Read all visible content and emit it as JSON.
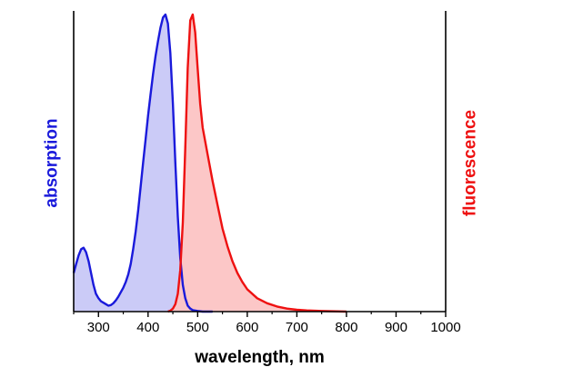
{
  "chart_data": {
    "type": "area",
    "xlabel": "wavelength, nm",
    "ylabel_left": "absorption",
    "ylabel_right": "fluorescence",
    "xlim": [
      250,
      1000
    ],
    "ylim": [
      0,
      1.0
    ],
    "x_ticks": [
      300,
      400,
      500,
      600,
      700,
      800,
      900,
      1000
    ],
    "y_tick_labels_shown": false,
    "grid": false,
    "legend": "none",
    "colors": {
      "absorption_line": "#1a1adb",
      "absorption_fill": "#c8c8f7",
      "fluorescence_line": "#ee1111",
      "fluorescence_fill": "#fcc4c4",
      "axis": "#000000",
      "left_label": "#1a1adb",
      "right_label": "#ee1111"
    },
    "series": [
      {
        "axis": "left",
        "x": [
          250,
          255,
          260,
          265,
          270,
          275,
          280,
          285,
          290,
          295,
          300,
          305,
          310,
          315,
          320,
          325,
          330,
          335,
          340,
          345,
          350,
          355,
          360,
          365,
          370,
          375,
          380,
          385,
          390,
          395,
          400,
          405,
          410,
          415,
          420,
          425,
          430,
          435,
          440,
          445,
          450,
          455,
          460,
          465,
          470,
          475,
          480,
          485,
          490,
          500,
          510,
          520,
          530
        ],
        "y": [
          0.13,
          0.16,
          0.19,
          0.21,
          0.215,
          0.2,
          0.17,
          0.13,
          0.09,
          0.06,
          0.045,
          0.035,
          0.03,
          0.025,
          0.02,
          0.022,
          0.028,
          0.038,
          0.05,
          0.065,
          0.08,
          0.1,
          0.125,
          0.16,
          0.21,
          0.27,
          0.34,
          0.42,
          0.5,
          0.58,
          0.66,
          0.73,
          0.8,
          0.86,
          0.91,
          0.955,
          0.99,
          1.0,
          0.97,
          0.87,
          0.7,
          0.5,
          0.32,
          0.18,
          0.09,
          0.045,
          0.02,
          0.01,
          0.005,
          0.002,
          0.0,
          0.0,
          0.0
        ]
      },
      {
        "axis": "right",
        "x": [
          440,
          445,
          450,
          455,
          460,
          465,
          470,
          475,
          480,
          485,
          490,
          495,
          500,
          505,
          510,
          520,
          530,
          540,
          550,
          560,
          570,
          580,
          590,
          600,
          620,
          640,
          660,
          680,
          700,
          720,
          750,
          800
        ],
        "y": [
          0.0,
          0.003,
          0.01,
          0.025,
          0.06,
          0.14,
          0.3,
          0.55,
          0.82,
          0.98,
          1.0,
          0.94,
          0.82,
          0.7,
          0.62,
          0.53,
          0.44,
          0.36,
          0.28,
          0.22,
          0.17,
          0.13,
          0.1,
          0.075,
          0.045,
          0.028,
          0.017,
          0.01,
          0.006,
          0.004,
          0.002,
          0.0
        ]
      }
    ]
  }
}
